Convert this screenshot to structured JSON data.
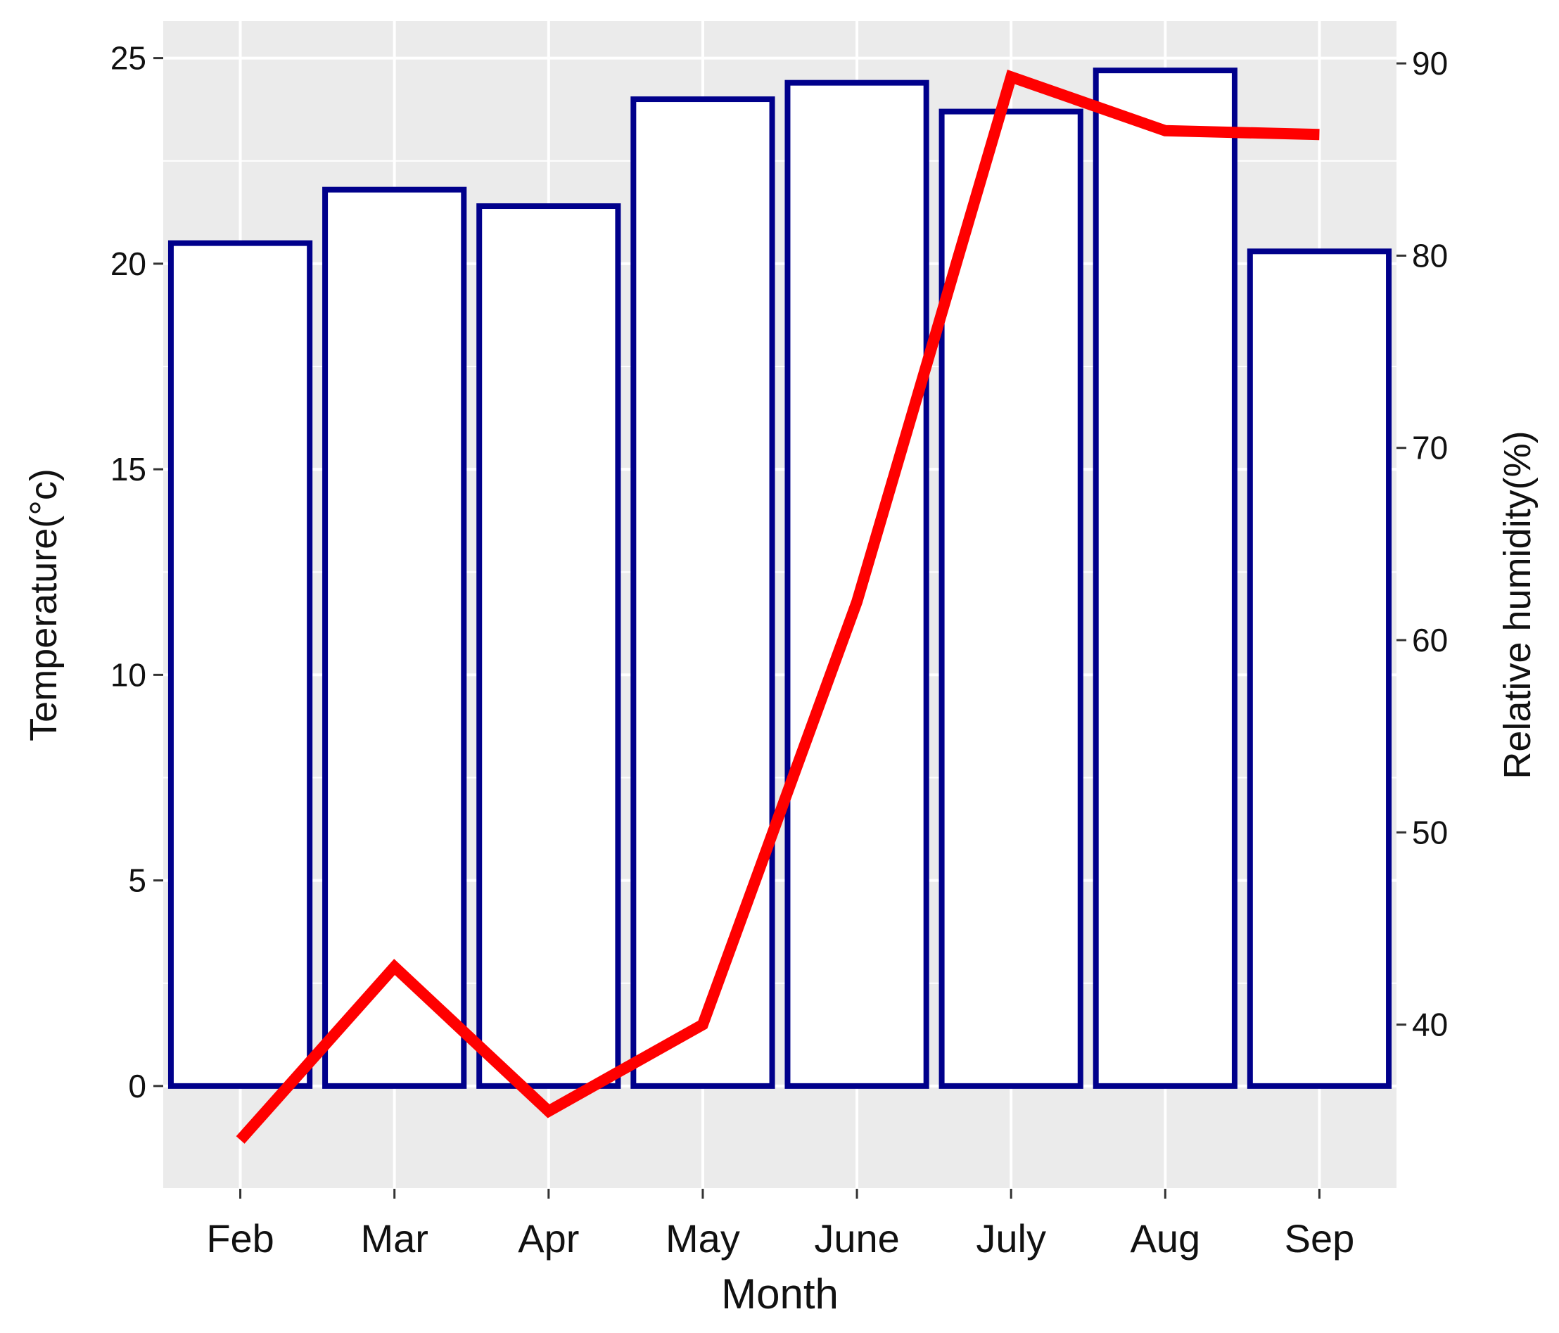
{
  "chart_data": {
    "type": "bar",
    "categories": [
      "Feb",
      "Mar",
      "Apr",
      "May",
      "June",
      "July",
      "Aug",
      "Sep"
    ],
    "series": [
      {
        "type": "bar",
        "axis": "left",
        "color": "#00008B",
        "values": [
          20.5,
          21.8,
          21.4,
          24.0,
          24.4,
          23.7,
          24.7,
          20.3
        ]
      },
      {
        "type": "line",
        "axis": "right",
        "color": "#FF0000",
        "values": [
          34.0,
          43.0,
          35.5,
          40.0,
          62.0,
          89.3,
          86.5,
          86.3
        ]
      }
    ],
    "title": "",
    "xlabel": "Month",
    "ylabel": "Temperature(°c)",
    "y2label": "Relative humidity(%)",
    "ylim": [
      -2.5,
      25.9
    ],
    "y2lim": [
      31.46,
      92.2
    ],
    "yticks": [
      0,
      5,
      10,
      15,
      20,
      25
    ],
    "y2ticks": [
      40,
      50,
      60,
      70,
      80,
      90
    ],
    "grid": true,
    "panel_color": "#EBEBEB",
    "grid_color": "#FFFFFF",
    "legend": "none"
  }
}
